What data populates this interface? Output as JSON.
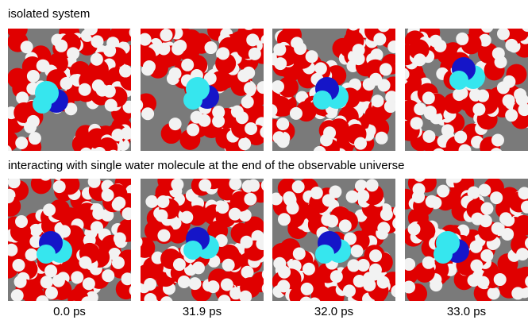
{
  "rows": [
    {
      "label": "isolated system"
    },
    {
      "label": "interacting with single water molecule at the end of the observable universe"
    }
  ],
  "columns": [
    {
      "label": "0.0 ps"
    },
    {
      "label": "31.9 ps"
    },
    {
      "label": "32.0 ps"
    },
    {
      "label": "33.0 ps"
    }
  ]
}
